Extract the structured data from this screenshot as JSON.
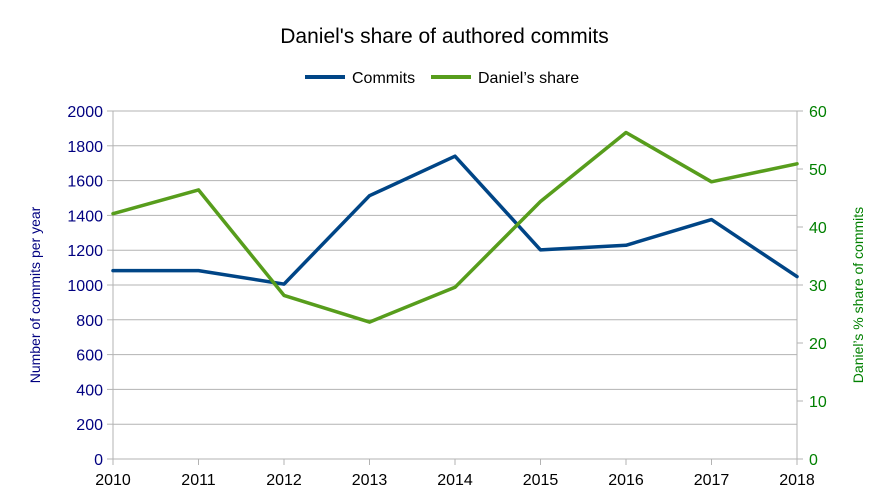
{
  "chart_data": {
    "type": "line",
    "title": "Daniel's share of authored commits",
    "x": [
      "2010",
      "2011",
      "2012",
      "2013",
      "2014",
      "2015",
      "2016",
      "2017",
      "2018"
    ],
    "series": [
      {
        "name": "Commits",
        "axis": "left",
        "color": "#004586",
        "values": [
          1083,
          1083,
          1005,
          1513,
          1740,
          1202,
          1228,
          1376,
          1048
        ]
      },
      {
        "name": "Daniel’s share",
        "axis": "right",
        "color": "#579d1c",
        "values": [
          42.3,
          46.4,
          28.2,
          23.6,
          29.6,
          44.4,
          56.3,
          47.8,
          50.9
        ]
      }
    ],
    "ylabel_left": "Number of commits per year",
    "ylabel_right": "Daniel’s % share of commits",
    "ylim_left": [
      0,
      2000
    ],
    "ylim_right": [
      0,
      60
    ],
    "yticks_left": [
      "0",
      "200",
      "400",
      "600",
      "800",
      "1000",
      "1200",
      "1400",
      "1600",
      "1800",
      "2000"
    ],
    "yticks_right": [
      "0",
      "10",
      "20",
      "30",
      "40",
      "50",
      "60"
    ],
    "grid": true,
    "legend_position": "top"
  }
}
